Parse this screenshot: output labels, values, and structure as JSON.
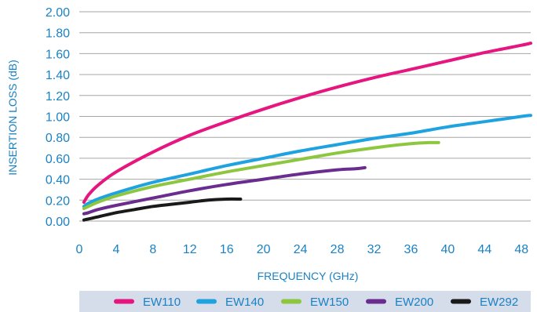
{
  "chart_data": {
    "type": "line",
    "xlabel": "FREQUENCY (GHz)",
    "ylabel": "INSERTION LOSS (dB)",
    "xlim": [
      0,
      49
    ],
    "ylim": [
      0,
      2
    ],
    "xticks": [
      0,
      4,
      8,
      12,
      16,
      20,
      24,
      28,
      32,
      36,
      40,
      44,
      48
    ],
    "yticks": [
      0,
      0.2,
      0.4,
      0.6,
      0.8,
      1.0,
      1.2,
      1.4,
      1.6,
      1.8,
      2.0
    ],
    "xtick_labels": [
      "0",
      "4",
      "8",
      "12",
      "16",
      "20",
      "24",
      "28",
      "32",
      "36",
      "40",
      "44",
      "48"
    ],
    "ytick_labels": [
      "0.00",
      "0.20",
      "0.40",
      "0.60",
      "0.80",
      "1.00",
      "1.20",
      "1.40",
      "1.60",
      "1.80",
      "2.00"
    ],
    "grid": "horizontal",
    "legend_position": "bottom",
    "series": [
      {
        "name": "EW110",
        "color": "#e6157f",
        "x": [
          0.5,
          1,
          2,
          4,
          8,
          12,
          16,
          20,
          24,
          28,
          32,
          36,
          40,
          44,
          48,
          49
        ],
        "y": [
          0.18,
          0.25,
          0.34,
          0.47,
          0.66,
          0.82,
          0.95,
          1.07,
          1.18,
          1.28,
          1.37,
          1.45,
          1.53,
          1.61,
          1.68,
          1.7
        ]
      },
      {
        "name": "EW140",
        "color": "#1fa3e0",
        "x": [
          0.5,
          1,
          2,
          4,
          8,
          12,
          16,
          20,
          24,
          28,
          32,
          36,
          40,
          44,
          48,
          49
        ],
        "y": [
          0.14,
          0.17,
          0.21,
          0.27,
          0.37,
          0.45,
          0.53,
          0.6,
          0.67,
          0.73,
          0.79,
          0.84,
          0.9,
          0.95,
          1.0,
          1.01
        ]
      },
      {
        "name": "EW150",
        "color": "#8dc63f",
        "x": [
          0.5,
          1,
          2,
          4,
          8,
          12,
          16,
          20,
          24,
          28,
          32,
          36,
          38,
          39
        ],
        "y": [
          0.12,
          0.14,
          0.18,
          0.24,
          0.33,
          0.4,
          0.47,
          0.53,
          0.59,
          0.65,
          0.7,
          0.74,
          0.75,
          0.75
        ]
      },
      {
        "name": "EW200",
        "color": "#6a2c8e",
        "x": [
          0.5,
          1,
          2,
          4,
          8,
          12,
          16,
          20,
          24,
          28,
          30,
          31
        ],
        "y": [
          0.07,
          0.08,
          0.11,
          0.15,
          0.22,
          0.29,
          0.35,
          0.4,
          0.45,
          0.49,
          0.5,
          0.51
        ]
      },
      {
        "name": "EW292",
        "color": "#1a1a1a",
        "x": [
          0.5,
          1,
          2,
          4,
          6,
          8,
          10,
          12,
          14,
          16,
          17.5
        ],
        "y": [
          0.01,
          0.02,
          0.04,
          0.08,
          0.11,
          0.14,
          0.16,
          0.18,
          0.2,
          0.21,
          0.21
        ]
      }
    ],
    "colors": {
      "axis_text": "#1a82c4",
      "grid": "#a6a6a6",
      "legend_background": "#d5dcea"
    }
  }
}
